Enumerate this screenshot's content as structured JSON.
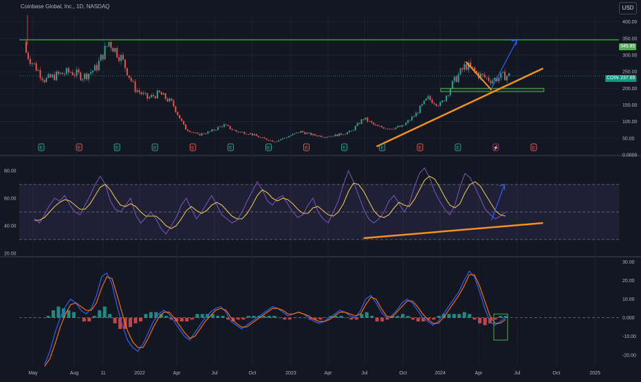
{
  "header": {
    "symbol_title": "Coinbase Global, Inc., 1D, NASDAQ",
    "currency": "USD"
  },
  "price_tags": {
    "resistance_label": "345.85",
    "ticker": "COIN",
    "last_price": "237.65"
  },
  "colors": {
    "background": "#131722",
    "up_candle": "#26a69a",
    "down_candle": "#ef5350",
    "resistance_line": "#4caf50",
    "trendline": "#f7931a",
    "projection_arrow": "#2962ff",
    "rsi_line": "#7e57c2",
    "rsi_ma": "#e6c84a",
    "rsi_band": "#7e57c2",
    "macd_line": "#2962ff",
    "signal_line": "#ff6d00",
    "hist_up": "#26a69a",
    "hist_down": "#ef5350"
  },
  "chart_data": [
    {
      "type": "candlestick",
      "title": "Coinbase Global, Inc., 1D, NASDAQ",
      "x_ticks": [
        "May",
        "Aug",
        "11",
        "2022",
        "Apr",
        "Jul",
        "Oct",
        "2023",
        "Apr",
        "Jul",
        "Oct",
        "2024",
        "Apr",
        "Jul",
        "Oct",
        "2025"
      ],
      "y_ticks": [
        "400.00",
        "350.00",
        "300.00",
        "250.00",
        "200.00",
        "150.00",
        "100.00",
        "50.00",
        "0.0000"
      ],
      "ylim": [
        0,
        420
      ],
      "approx_close_path": {
        "x": [
          "2021-04",
          "2021-05",
          "2021-06",
          "2021-07",
          "2021-08",
          "2021-09",
          "2021-10",
          "2021-11",
          "2021-12",
          "2022-01",
          "2022-02",
          "2022-03",
          "2022-04",
          "2022-05",
          "2022-06",
          "2022-07",
          "2022-08",
          "2022-09",
          "2022-10",
          "2022-11",
          "2022-12",
          "2023-01",
          "2023-02",
          "2023-03",
          "2023-04",
          "2023-05",
          "2023-06",
          "2023-07",
          "2023-08",
          "2023-09",
          "2023-10",
          "2023-11",
          "2023-12",
          "2024-01",
          "2024-02",
          "2024-03",
          "2024-04",
          "2024-05",
          "2024-06"
        ],
        "close": [
          340,
          280,
          225,
          240,
          250,
          235,
          260,
          340,
          290,
          200,
          170,
          185,
          155,
          80,
          60,
          70,
          90,
          70,
          65,
          50,
          40,
          55,
          70,
          60,
          55,
          60,
          70,
          110,
          85,
          80,
          85,
          120,
          170,
          150,
          220,
          270,
          240,
          225,
          238
        ]
      },
      "last_price": 237.65,
      "annotations": [
        {
          "kind": "horizontal_line",
          "value": 345.85,
          "label": "345.85"
        },
        {
          "kind": "support_box",
          "range": [
            190,
            200
          ]
        },
        {
          "kind": "rising_trendline",
          "from": {
            "x": "2023-08",
            "y": 25
          },
          "to": {
            "x": "2024-09",
            "y": 260
          }
        },
        {
          "kind": "falling_trendline",
          "from": {
            "x": "2024-03",
            "y": 280
          },
          "to": {
            "x": "2024-05",
            "y": 195
          }
        },
        {
          "kind": "projection_arrow",
          "from": {
            "x": "2024-05",
            "y": 200
          },
          "to": {
            "x": "2024-07",
            "y": 345
          }
        }
      ],
      "earnings_markers": [
        "E",
        "E",
        "E",
        "E",
        "E",
        "E",
        "E",
        "E",
        "E",
        "E",
        "E",
        "E",
        "⚡",
        "E"
      ]
    },
    {
      "type": "line",
      "title": "",
      "y_ticks": [
        "80.00",
        "60.00",
        "40.00",
        "20.00"
      ],
      "ylim": [
        18,
        90
      ],
      "bands": [
        30,
        50,
        70
      ],
      "series": [
        {
          "values": [
            45,
            42,
            48,
            55,
            60,
            58,
            62,
            55,
            50,
            48,
            55,
            62,
            70,
            76,
            70,
            58,
            52,
            50,
            55,
            60,
            48,
            42,
            46,
            50,
            45,
            38,
            34,
            40,
            46,
            55,
            60,
            52,
            45,
            50,
            56,
            62,
            55,
            48,
            45,
            42,
            44,
            50,
            58,
            65,
            72,
            66,
            58,
            55,
            60,
            62,
            56,
            50,
            46,
            48,
            55,
            60,
            50,
            45,
            42,
            50,
            58,
            70,
            80,
            72,
            62,
            52,
            45,
            42,
            45,
            50,
            58,
            62,
            56,
            50,
            56,
            68,
            78,
            82,
            75,
            65,
            58,
            52,
            48,
            55,
            68,
            78,
            75,
            68,
            60,
            52,
            48,
            45,
            47,
            50
          ]
        },
        {
          "values": [
            44,
            44,
            46,
            50,
            54,
            57,
            59,
            58,
            55,
            52,
            52,
            56,
            62,
            68,
            70,
            66,
            60,
            55,
            54,
            56,
            54,
            50,
            47,
            47,
            47,
            44,
            40,
            38,
            40,
            45,
            51,
            54,
            51,
            49,
            51,
            55,
            57,
            55,
            51,
            47,
            45,
            45,
            49,
            55,
            62,
            66,
            64,
            60,
            58,
            60,
            59,
            56,
            52,
            49,
            49,
            53,
            54,
            51,
            48,
            47,
            50,
            56,
            65,
            71,
            70,
            65,
            58,
            51,
            47,
            46,
            48,
            53,
            57,
            55,
            54,
            59,
            66,
            73,
            76,
            74,
            68,
            61,
            55,
            53,
            56,
            64,
            70,
            72,
            69,
            63,
            57,
            51,
            48,
            47
          ]
        }
      ],
      "annotations": [
        {
          "kind": "rising_trendline",
          "from": {
            "x": "2023-07",
            "y": 31
          },
          "to": {
            "x": "2024-09",
            "y": 42
          }
        },
        {
          "kind": "projection_arrow",
          "from": {
            "x": "2024-05",
            "y": 44
          },
          "to": {
            "x": "2024-06",
            "y": 70
          }
        }
      ]
    },
    {
      "type": "line",
      "title": "",
      "y_ticks": [
        "30.00",
        "20.00",
        "10.00",
        "0.000",
        "-10.00",
        "-20.00"
      ],
      "ylim": [
        -26,
        32
      ],
      "series": [
        {
          "values": [
            -25,
            -18,
            -8,
            0,
            6,
            10,
            8,
            4,
            2,
            5,
            12,
            22,
            24,
            18,
            6,
            -4,
            -12,
            -16,
            -18,
            -14,
            -8,
            -2,
            2,
            4,
            2,
            -2,
            -6,
            -10,
            -12,
            -8,
            -4,
            0,
            3,
            5,
            6,
            3,
            -2,
            -4,
            -6,
            -4,
            -2,
            0,
            2,
            4,
            6,
            5,
            3,
            1,
            2,
            3,
            2,
            0,
            -2,
            -3,
            -2,
            0,
            2,
            4,
            3,
            1,
            0,
            4,
            10,
            12,
            8,
            3,
            0,
            1,
            4,
            8,
            10,
            8,
            4,
            0,
            -2,
            -4,
            -2,
            2,
            6,
            10,
            14,
            20,
            25,
            22,
            14,
            5,
            -2,
            -4,
            -2,
            0
          ]
        },
        {
          "values": [
            -26,
            -22,
            -14,
            -5,
            2,
            7,
            8,
            6,
            4,
            4,
            8,
            16,
            22,
            21,
            12,
            2,
            -7,
            -13,
            -16,
            -16,
            -11,
            -5,
            0,
            3,
            3,
            0,
            -4,
            -8,
            -11,
            -10,
            -6,
            -2,
            1,
            4,
            5,
            4,
            0,
            -3,
            -5,
            -5,
            -3,
            -1,
            1,
            3,
            5,
            5,
            4,
            2,
            2,
            3,
            2,
            1,
            -1,
            -2,
            -2,
            -1,
            1,
            3,
            3,
            2,
            1,
            2,
            7,
            11,
            10,
            5,
            1,
            0,
            3,
            6,
            9,
            9,
            6,
            2,
            -1,
            -3,
            -3,
            0,
            4,
            8,
            12,
            17,
            23,
            23,
            17,
            9,
            1,
            -3,
            -3,
            -1
          ]
        }
      ],
      "histogram": [
        1,
        4,
        6,
        5,
        4,
        3,
        0,
        -2,
        -2,
        1,
        4,
        6,
        2,
        -3,
        -6,
        -6,
        -5,
        -3,
        -2,
        2,
        3,
        3,
        2,
        1,
        -1,
        -2,
        -2,
        -2,
        -1,
        2,
        2,
        2,
        2,
        1,
        1,
        -1,
        -2,
        -1,
        -1,
        1,
        1,
        1,
        1,
        1,
        1,
        0,
        -1,
        -1,
        0,
        0,
        0,
        -1,
        -1,
        -1,
        0,
        1,
        1,
        1,
        0,
        -1,
        -1,
        2,
        3,
        1,
        -2,
        -2,
        -1,
        1,
        1,
        2,
        1,
        -1,
        -2,
        -2,
        -1,
        -1,
        1,
        2,
        2,
        2,
        2,
        3,
        2,
        -1,
        -3,
        -4,
        -3,
        -1,
        1,
        1
      ]
    }
  ]
}
